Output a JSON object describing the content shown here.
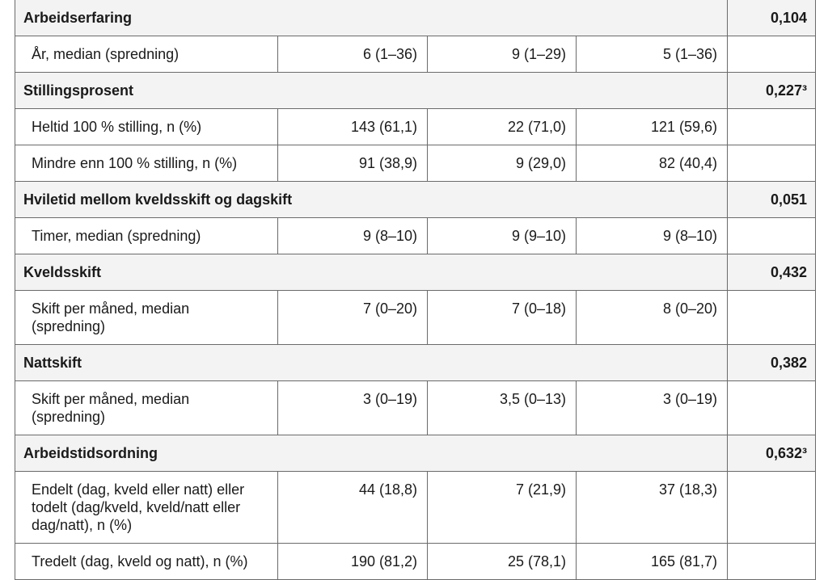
{
  "sections": [
    {
      "title": "Arbeidserfaring",
      "p": "0,104",
      "rows": [
        {
          "label": "År, median (spredning)",
          "cells": [
            "6 (1–36)",
            "9 (1–29)",
            "5 (1–36)"
          ]
        }
      ]
    },
    {
      "title": "Stillingsprosent",
      "p": "0,227³",
      "rows": [
        {
          "label": "Heltid 100 % stilling, n (%)",
          "cells": [
            "143 (61,1)",
            "22 (71,0)",
            "121 (59,6)"
          ]
        },
        {
          "label": "Mindre enn 100 % stilling, n (%)",
          "cells": [
            "91 (38,9)",
            "9 (29,0)",
            "82 (40,4)"
          ]
        }
      ]
    },
    {
      "title": "Hviletid mellom kveldsskift og dagskift",
      "p": "0,051",
      "rows": [
        {
          "label": "Timer, median (spredning)",
          "cells": [
            "9 (8–10)",
            "9 (9–10)",
            "9 (8–10)"
          ]
        }
      ]
    },
    {
      "title": "Kveldsskift",
      "p": "0,432",
      "rows": [
        {
          "label": "Skift per måned, median (spredning)",
          "cells": [
            "7 (0–20)",
            "7 (0–18)",
            "8 (0–20)"
          ]
        }
      ]
    },
    {
      "title": "Nattskift",
      "p": "0,382",
      "rows": [
        {
          "label": "Skift per måned, median (spredning)",
          "cells": [
            "3 (0–19)",
            "3,5 (0–13)",
            "3 (0–19)"
          ]
        }
      ]
    },
    {
      "title": "Arbeidstidsordning",
      "p": "0,632³",
      "rows": [
        {
          "label": "Endelt (dag, kveld eller natt) eller todelt (dag/kveld, kveld/natt eller dag/natt), n (%)",
          "cells": [
            "44 (18,8)",
            "7 (21,9)",
            "37 (18,3)"
          ]
        },
        {
          "label": "Tredelt (dag, kveld og natt), n (%)",
          "cells": [
            "190 (81,2)",
            "25 (78,1)",
            "165 (81,7)"
          ]
        }
      ]
    }
  ]
}
